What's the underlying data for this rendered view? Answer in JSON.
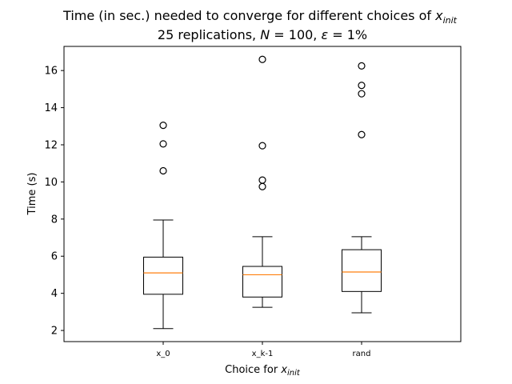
{
  "chart_data": {
    "type": "box",
    "title_line1_prefix": "Time (in sec.) needed to converge for different choices of ",
    "title_line1_math": "x",
    "title_line1_sub": "init",
    "title_line2_prefix": "25 replications, ",
    "title_line2_N": "N",
    "title_line2_N_val": " = 100, ",
    "title_line2_eps": "ε",
    "title_line2_eps_val": " = 1%",
    "xlabel_prefix": "Choice for ",
    "xlabel_math": "x",
    "xlabel_sub": "init",
    "ylabel": "Time (s)",
    "categories": [
      "x_0",
      "x_k-1",
      "rand"
    ],
    "ylim": [
      1.4,
      17.3
    ],
    "yticks": [
      2,
      4,
      6,
      8,
      10,
      12,
      14,
      16
    ],
    "grid": false,
    "boxes": [
      {
        "whisker_low": 2.1,
        "q1": 3.95,
        "median": 5.1,
        "q3": 5.95,
        "whisker_high": 7.95,
        "fliers": [
          10.6,
          12.05,
          13.05
        ]
      },
      {
        "whisker_low": 3.25,
        "q1": 3.8,
        "median": 5.0,
        "q3": 5.45,
        "whisker_high": 7.05,
        "fliers": [
          9.75,
          10.1,
          11.95,
          16.6
        ]
      },
      {
        "whisker_low": 2.95,
        "q1": 4.1,
        "median": 5.15,
        "q3": 6.35,
        "whisker_high": 7.05,
        "fliers": [
          12.55,
          14.75,
          15.2,
          16.25
        ]
      }
    ],
    "colors": {
      "box": "#000000",
      "median": "#ff7f0e",
      "flier": "#000000"
    }
  }
}
